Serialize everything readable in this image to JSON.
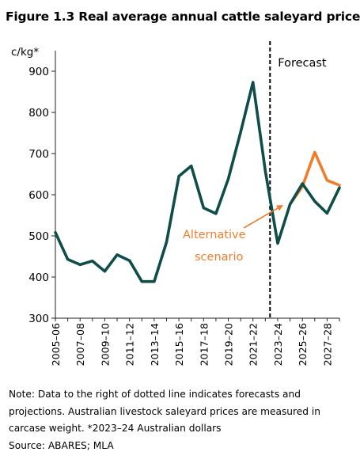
{
  "title": "Figure 1.3 Real average annual cattle saleyard price",
  "note": "Note: Data to the right of dotted line indicates forecasts and projections. Australian livestock saleyard prices are measured in carcase weight. *2023–24 Australian dollars",
  "source": "Source: ABARES; MLA",
  "chart_data": {
    "type": "line",
    "ylabel": "c/kg*",
    "ylim": [
      300,
      950
    ],
    "yticks": [
      300,
      400,
      500,
      600,
      700,
      800,
      900
    ],
    "xtick_labels": [
      "2005–06",
      "2007–08",
      "2009–10",
      "2011–12",
      "2013–14",
      "2015–16",
      "2017–18",
      "2019–20",
      "2021–22",
      "2023–24",
      "2025–26",
      "2027–28"
    ],
    "x": [
      "2005–06",
      "2006–07",
      "2007–08",
      "2008–09",
      "2009–10",
      "2010–11",
      "2011–12",
      "2012–13",
      "2013–14",
      "2014–15",
      "2015–16",
      "2016–17",
      "2017–18",
      "2018–19",
      "2019–20",
      "2020–21",
      "2021–22",
      "2022–23",
      "2023–24",
      "2024–25",
      "2025–26",
      "2026–27",
      "2027–28",
      "2028–29"
    ],
    "series": [
      {
        "color": "#0f4d4a",
        "values": [
          508,
          443,
          430,
          439,
          414,
          454,
          440,
          389,
          389,
          485,
          645,
          670,
          568,
          554,
          638,
          752,
          873,
          658,
          482,
          577,
          627,
          584,
          555,
          617
        ]
      },
      {
        "color": "#f07d2a",
        "x": [
          "2024–25",
          "2025–26",
          "2026–27",
          "2027–28",
          "2028–29"
        ],
        "values": [
          577,
          620,
          703,
          635,
          623
        ]
      }
    ],
    "forecast_divider_after": "2022–23",
    "annotations": [
      {
        "text": "Forecast",
        "color": "#000000"
      },
      {
        "text_lines": [
          "Alternative",
          "scenario"
        ],
        "color": "#f07d2a"
      }
    ],
    "grid": false
  }
}
